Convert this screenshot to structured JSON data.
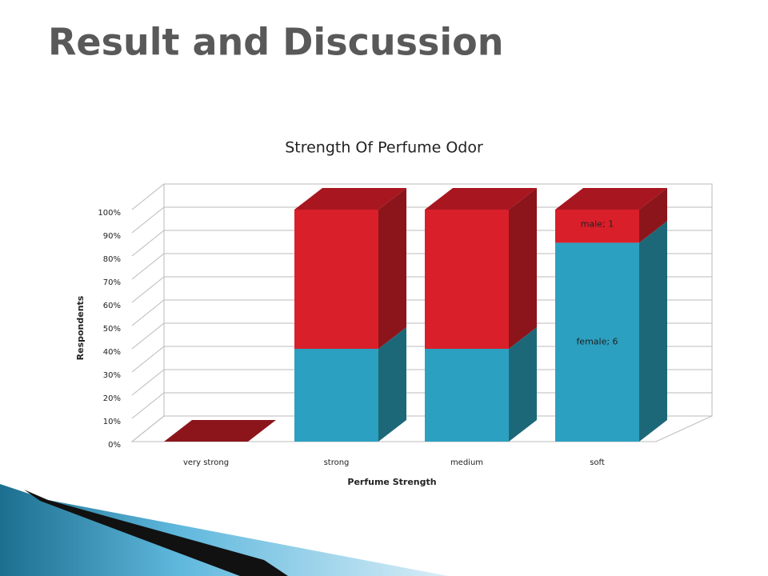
{
  "slide_title": "Result and Discussion",
  "chart_data": {
    "type": "bar",
    "stacking": "percent",
    "title": "Strength Of Perfume Odor",
    "x_label": "Perfume Strength",
    "y_label": "Respondents",
    "categories": [
      "very strong",
      "strong",
      "medium",
      "soft"
    ],
    "series": [
      {
        "name": "female",
        "color": "#2ca0c0",
        "side_color": "#1d6878",
        "values": [
          0,
          2,
          2,
          6
        ],
        "value_labels": [
          null,
          null,
          null,
          "female; 6"
        ]
      },
      {
        "name": "male",
        "color": "#d91f2a",
        "side_color": "#8c151c",
        "values": [
          0,
          3,
          3,
          1
        ],
        "value_labels": [
          null,
          null,
          null,
          "male; 1"
        ]
      }
    ],
    "ylim": [
      0,
      100
    ],
    "yticks": [
      {
        "value": 0,
        "label": "0%"
      },
      {
        "value": 10,
        "label": "10%"
      },
      {
        "value": 20,
        "label": "20%"
      },
      {
        "value": 30,
        "label": "30%"
      },
      {
        "value": 40,
        "label": "40%"
      },
      {
        "value": 50,
        "label": "50%"
      },
      {
        "value": 60,
        "label": "60%"
      },
      {
        "value": 70,
        "label": "70%"
      },
      {
        "value": 80,
        "label": "80%"
      },
      {
        "value": 90,
        "label": "90%"
      },
      {
        "value": 100,
        "label": "100%"
      }
    ],
    "grid": true
  }
}
